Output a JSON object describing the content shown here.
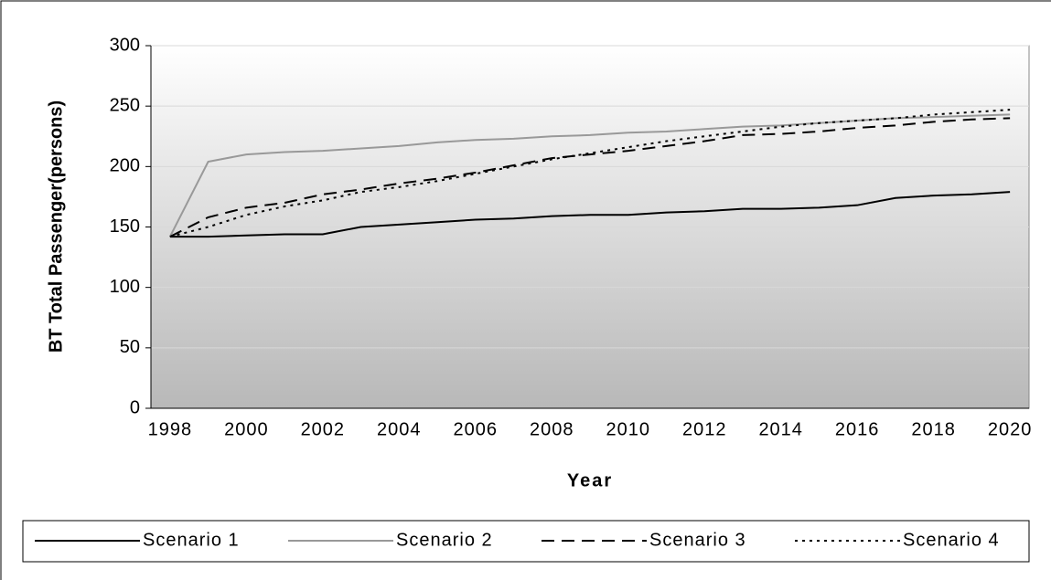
{
  "chart_data": {
    "type": "line",
    "ylabel": "BT Total Passenger(persons)",
    "xlabel": "Year",
    "categories": [
      "1998",
      null,
      "2000",
      null,
      "2002",
      null,
      "2004",
      null,
      "2006",
      null,
      "2008",
      null,
      "2010",
      null,
      "2012",
      null,
      "2014",
      null,
      "2016",
      null,
      "2018",
      null,
      "2020"
    ],
    "series": [
      {
        "name": "Scenario 1",
        "color": "#000000",
        "style": "solid",
        "values": [
          142,
          142,
          143,
          144,
          144,
          150,
          152,
          154,
          156,
          157,
          159,
          160,
          160,
          162,
          163,
          165,
          165,
          166,
          168,
          174,
          176,
          177,
          179
        ]
      },
      {
        "name": "Scenario 2",
        "color": "#999999",
        "style": "solid",
        "values": [
          142,
          204,
          210,
          212,
          213,
          215,
          217,
          220,
          222,
          223,
          225,
          226,
          228,
          229,
          231,
          233,
          234,
          236,
          238,
          240,
          241,
          242,
          243
        ]
      },
      {
        "name": "Scenario 3",
        "color": "#000000",
        "style": "dashed",
        "values": [
          142,
          158,
          166,
          170,
          177,
          181,
          186,
          190,
          195,
          201,
          207,
          210,
          213,
          217,
          221,
          226,
          227,
          229,
          232,
          234,
          237,
          239,
          240
        ]
      },
      {
        "name": "Scenario 4",
        "color": "#000000",
        "style": "dotted",
        "values": [
          142,
          150,
          160,
          167,
          172,
          179,
          183,
          188,
          194,
          200,
          206,
          211,
          216,
          221,
          225,
          229,
          233,
          236,
          238,
          240,
          243,
          245,
          247
        ]
      }
    ],
    "ylim": [
      0,
      300
    ],
    "yticks": [
      0,
      50,
      100,
      150,
      200,
      250,
      300
    ],
    "grid": true,
    "legend": "bottom"
  }
}
